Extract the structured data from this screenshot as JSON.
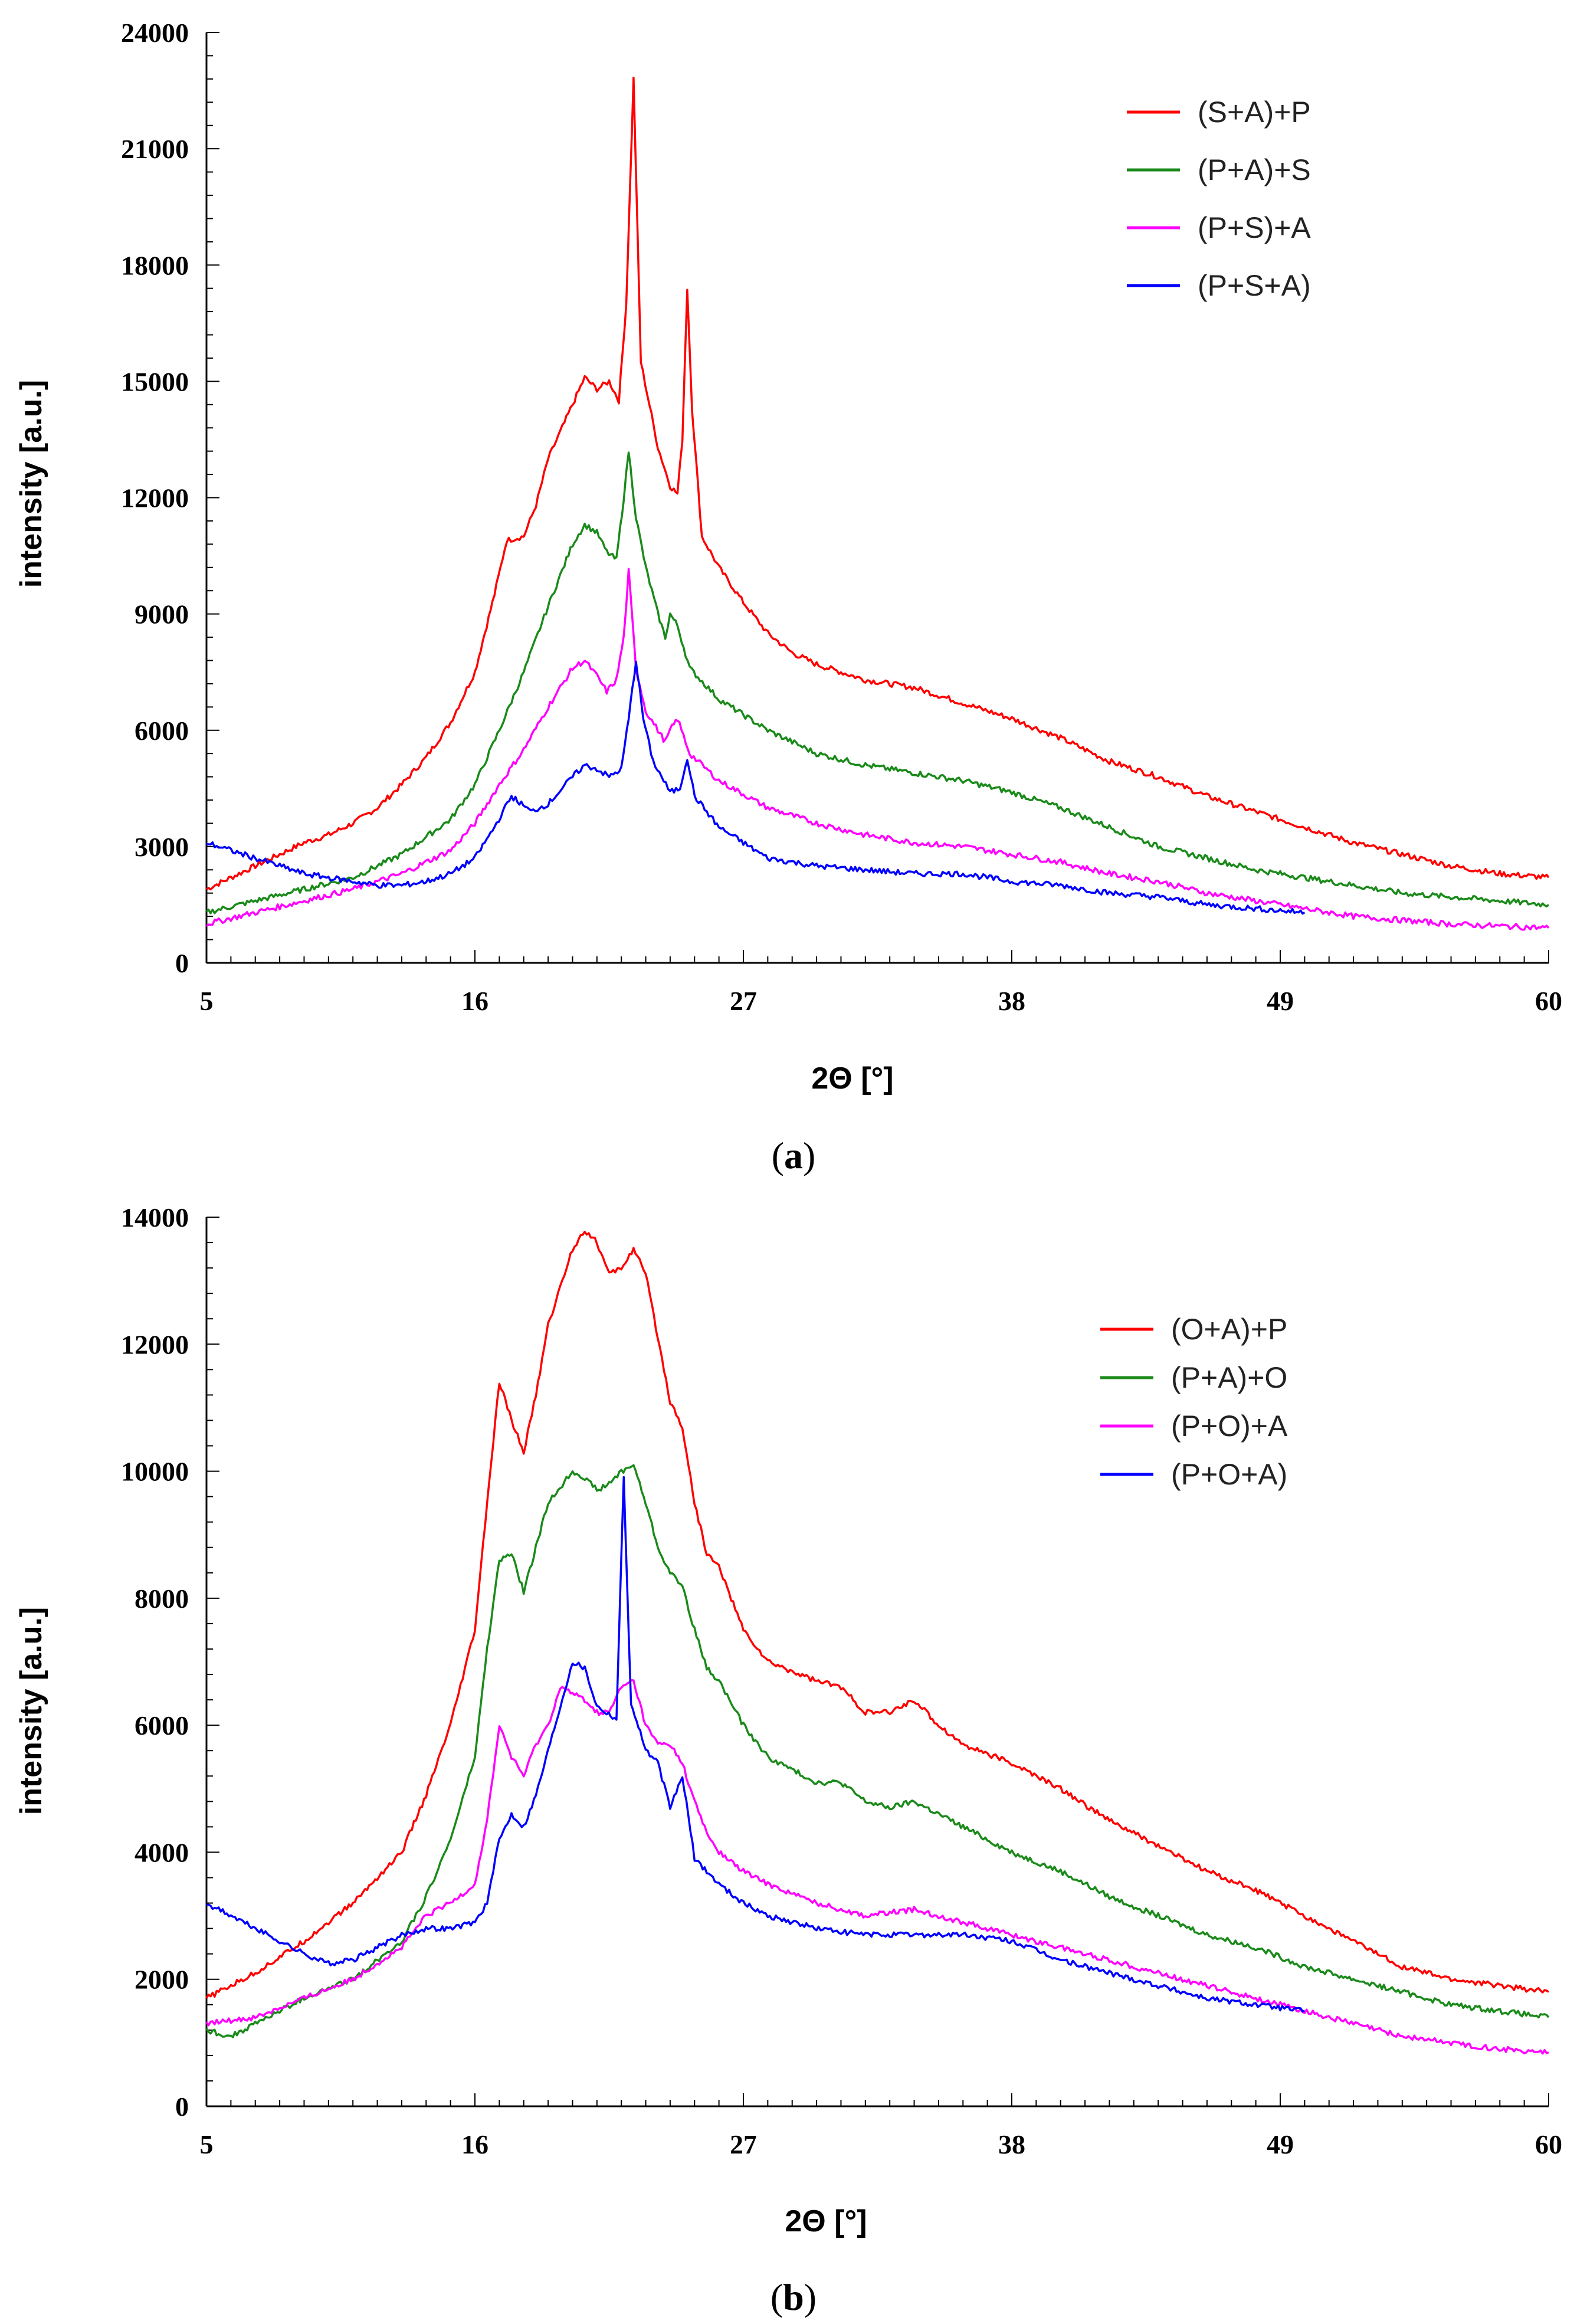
{
  "chart_data": [
    {
      "type": "line",
      "panel_label": "a",
      "xlabel": "2Θ [°]",
      "ylabel": "intensity [a.u.]",
      "xlim": [
        5,
        60
      ],
      "ylim": [
        0,
        24000
      ],
      "xticks": [
        5,
        16,
        27,
        38,
        49,
        60
      ],
      "yticks": [
        0,
        3000,
        6000,
        9000,
        12000,
        15000,
        18000,
        21000,
        24000
      ],
      "legend_position": "top-right",
      "series": [
        {
          "name": "(S+A)+P",
          "color": "#ff0000",
          "x": [
            5,
            6,
            7,
            8,
            9,
            10,
            11,
            12,
            13,
            14,
            15,
            16,
            16.8,
            17.3,
            18,
            18.5,
            19,
            20,
            20.5,
            21,
            21.5,
            21.9,
            22.2,
            22.5,
            22.8,
            23.5,
            24,
            24.3,
            24.5,
            24.7,
            24.9,
            25.3,
            26,
            27,
            28,
            29,
            30,
            32,
            34,
            36,
            38,
            40,
            42,
            44,
            46,
            48,
            50,
            52,
            54,
            56,
            58,
            60
          ],
          "y": [
            1900,
            2200,
            2500,
            2800,
            3100,
            3300,
            3600,
            4000,
            4600,
            5300,
            6200,
            7500,
            9500,
            10900,
            11000,
            11800,
            13000,
            14400,
            15100,
            14800,
            15000,
            14500,
            17000,
            22800,
            15500,
            13300,
            12300,
            12100,
            13500,
            17400,
            14300,
            11000,
            10200,
            9300,
            8500,
            8000,
            7700,
            7300,
            7100,
            6700,
            6300,
            5800,
            5200,
            4800,
            4300,
            3900,
            3500,
            3100,
            2800,
            2500,
            2300,
            2200
          ]
        },
        {
          "name": "(P+A)+S",
          "color": "#1a8a1a",
          "x": [
            5,
            7,
            9,
            11,
            13,
            15,
            16,
            17,
            18,
            19,
            20,
            20.5,
            21,
            21.4,
            21.8,
            22.1,
            22.3,
            22.6,
            23,
            23.5,
            23.8,
            24,
            24.3,
            24.8,
            26,
            28,
            30,
            32,
            34,
            36,
            38,
            40,
            42,
            44,
            46,
            48,
            50,
            52,
            54,
            56,
            58,
            60
          ],
          "y": [
            1300,
            1600,
            1900,
            2200,
            2800,
            3700,
            4600,
            6000,
            7500,
            9200,
            10800,
            11300,
            11100,
            10600,
            10400,
            12000,
            13200,
            11500,
            10200,
            9000,
            8400,
            9000,
            8700,
            7600,
            6800,
            6000,
            5400,
            5100,
            4900,
            4700,
            4400,
            4000,
            3500,
            3000,
            2700,
            2400,
            2200,
            2000,
            1800,
            1700,
            1600,
            1500
          ]
        },
        {
          "name": "(P+S)+A",
          "color": "#ff00ff",
          "x": [
            5,
            7,
            9,
            11,
            13,
            15,
            16,
            17,
            18,
            19,
            20,
            20.5,
            21,
            21.4,
            21.8,
            22.1,
            22.3,
            22.6,
            23,
            23.5,
            23.8,
            24,
            24.3,
            24.8,
            26,
            28,
            30,
            32,
            34,
            36,
            38,
            40,
            42,
            44,
            46,
            48,
            50,
            52,
            54,
            56,
            58,
            60
          ],
          "y": [
            1000,
            1300,
            1600,
            1900,
            2300,
            2900,
            3600,
            4600,
            5500,
            6600,
            7600,
            7800,
            7400,
            7000,
            7300,
            8400,
            10100,
            7600,
            6500,
            6000,
            5700,
            6000,
            6300,
            5400,
            4700,
            4000,
            3600,
            3300,
            3100,
            3000,
            2800,
            2600,
            2300,
            2100,
            1800,
            1600,
            1400,
            1200,
            1100,
            1000,
            950,
            900
          ]
        },
        {
          "name": "(P+S+A)",
          "color": "#0000ff",
          "x": [
            5,
            6,
            7,
            8,
            9,
            10,
            11,
            12,
            13,
            14,
            15,
            16,
            16.8,
            17.5,
            18.3,
            19,
            20,
            20.5,
            21,
            21.5,
            22,
            22.3,
            22.6,
            22.9,
            23.3,
            24,
            24.4,
            24.7,
            25,
            26,
            27,
            28,
            30,
            32,
            34,
            36,
            38,
            40,
            42,
            44,
            46,
            48,
            50
          ],
          "y": [
            3100,
            2900,
            2700,
            2500,
            2300,
            2200,
            2100,
            2000,
            2000,
            2100,
            2300,
            2700,
            3500,
            4300,
            3900,
            4100,
            4800,
            5100,
            5000,
            4800,
            5000,
            6300,
            7800,
            6300,
            5200,
            4400,
            4500,
            5300,
            4300,
            3500,
            3100,
            2700,
            2500,
            2400,
            2300,
            2300,
            2100,
            2000,
            1800,
            1700,
            1500,
            1400,
            1300
          ]
        }
      ]
    },
    {
      "type": "line",
      "panel_label": "b",
      "xlabel": "2Θ [°]",
      "ylabel": "intensity [a.u.]",
      "xlim": [
        5,
        60
      ],
      "ylim": [
        0,
        14000
      ],
      "xticks": [
        5,
        16,
        27,
        38,
        49,
        60
      ],
      "yticks": [
        0,
        2000,
        4000,
        6000,
        8000,
        10000,
        12000,
        14000
      ],
      "legend_position": "top-right",
      "series": [
        {
          "name": "(O+A)+P",
          "color": "#ff0000",
          "x": [
            5,
            7,
            9,
            11,
            13,
            14,
            15,
            16,
            16.5,
            17,
            17.5,
            18,
            18.5,
            19,
            20,
            20.5,
            21,
            21.5,
            22,
            22.5,
            23,
            23.5,
            24,
            24.5,
            25,
            25.5,
            26,
            27,
            28,
            30,
            31,
            32,
            33,
            34,
            35,
            36,
            38,
            40,
            42,
            44,
            46,
            48,
            50,
            52,
            54,
            56,
            58,
            60
          ],
          "y": [
            1700,
            2100,
            2600,
            3200,
            4000,
            4900,
            6000,
            7500,
            9500,
            11400,
            10800,
            10300,
            11200,
            12300,
            13500,
            13800,
            13600,
            13100,
            13200,
            13500,
            13100,
            12100,
            11100,
            10700,
            9500,
            8700,
            8500,
            7500,
            7000,
            6700,
            6600,
            6200,
            6200,
            6400,
            6000,
            5700,
            5400,
            5000,
            4500,
            4100,
            3700,
            3400,
            3000,
            2600,
            2200,
            2000,
            1900,
            1800
          ]
        },
        {
          "name": "(P+A)+O",
          "color": "#1a8a1a",
          "x": [
            5,
            6,
            7,
            9,
            11,
            13,
            14,
            15,
            16,
            16.5,
            17,
            17.5,
            18,
            18.5,
            19,
            20,
            20.5,
            21,
            21.5,
            22,
            22.5,
            23,
            23.5,
            24,
            24.5,
            25,
            25.5,
            26,
            27,
            28,
            30,
            31,
            32,
            33,
            34,
            35,
            36,
            38,
            40,
            42,
            44,
            46,
            48,
            50,
            52,
            54,
            56,
            58,
            60
          ],
          "y": [
            1200,
            1100,
            1300,
            1700,
            2000,
            2600,
            3300,
            4200,
            5500,
            7200,
            8600,
            8700,
            8100,
            8800,
            9500,
            10000,
            9900,
            9700,
            9800,
            10000,
            10100,
            9500,
            8800,
            8400,
            8200,
            7500,
            6900,
            6700,
            6000,
            5500,
            5100,
            5100,
            4800,
            4700,
            4800,
            4600,
            4400,
            4000,
            3700,
            3300,
            3000,
            2700,
            2500,
            2200,
            2000,
            1800,
            1600,
            1500,
            1400
          ]
        },
        {
          "name": "(P+O)+A",
          "color": "#ff00ff",
          "x": [
            5,
            7,
            9,
            11,
            13,
            14,
            15,
            16,
            16.5,
            17,
            17.5,
            18,
            18.5,
            19,
            19.5,
            20,
            20.5,
            21,
            21.5,
            22,
            22.5,
            23,
            23.5,
            24,
            24.5,
            25,
            25.5,
            26,
            27,
            28,
            30,
            32,
            34,
            36,
            38,
            40,
            42,
            44,
            46,
            48,
            50,
            52,
            54,
            56,
            58,
            60
          ],
          "y": [
            1300,
            1400,
            1700,
            2000,
            2500,
            3000,
            3200,
            3500,
            4500,
            6000,
            5500,
            5200,
            5700,
            6000,
            6600,
            6500,
            6400,
            6200,
            6200,
            6600,
            6700,
            6000,
            5700,
            5700,
            5400,
            4800,
            4300,
            4000,
            3700,
            3500,
            3200,
            3000,
            3100,
            2900,
            2700,
            2500,
            2300,
            2100,
            1900,
            1700,
            1500,
            1300,
            1100,
            1000,
            900,
            850
          ]
        },
        {
          "name": "(P+O+A)",
          "color": "#0000ff",
          "x": [
            5,
            6,
            7,
            8,
            9,
            10,
            11,
            12,
            13,
            14,
            15,
            16,
            16.5,
            17,
            17.5,
            18,
            18.5,
            19,
            19.5,
            20,
            20.5,
            21,
            21.4,
            21.8,
            22.1,
            22.4,
            22.7,
            23,
            23.5,
            24,
            24.5,
            25,
            26,
            27,
            28,
            30,
            32,
            34,
            36,
            38,
            40,
            42,
            44,
            46,
            48,
            50
          ],
          "y": [
            3200,
            3000,
            2800,
            2600,
            2400,
            2250,
            2300,
            2500,
            2700,
            2800,
            2800,
            2900,
            3200,
            4200,
            4600,
            4400,
            4900,
            5600,
            6300,
            7000,
            6900,
            6300,
            6200,
            6100,
            9900,
            6300,
            6000,
            5600,
            5400,
            4700,
            5200,
            3900,
            3500,
            3200,
            3000,
            2800,
            2700,
            2700,
            2700,
            2600,
            2300,
            2100,
            1900,
            1700,
            1600,
            1500
          ]
        }
      ]
    }
  ]
}
